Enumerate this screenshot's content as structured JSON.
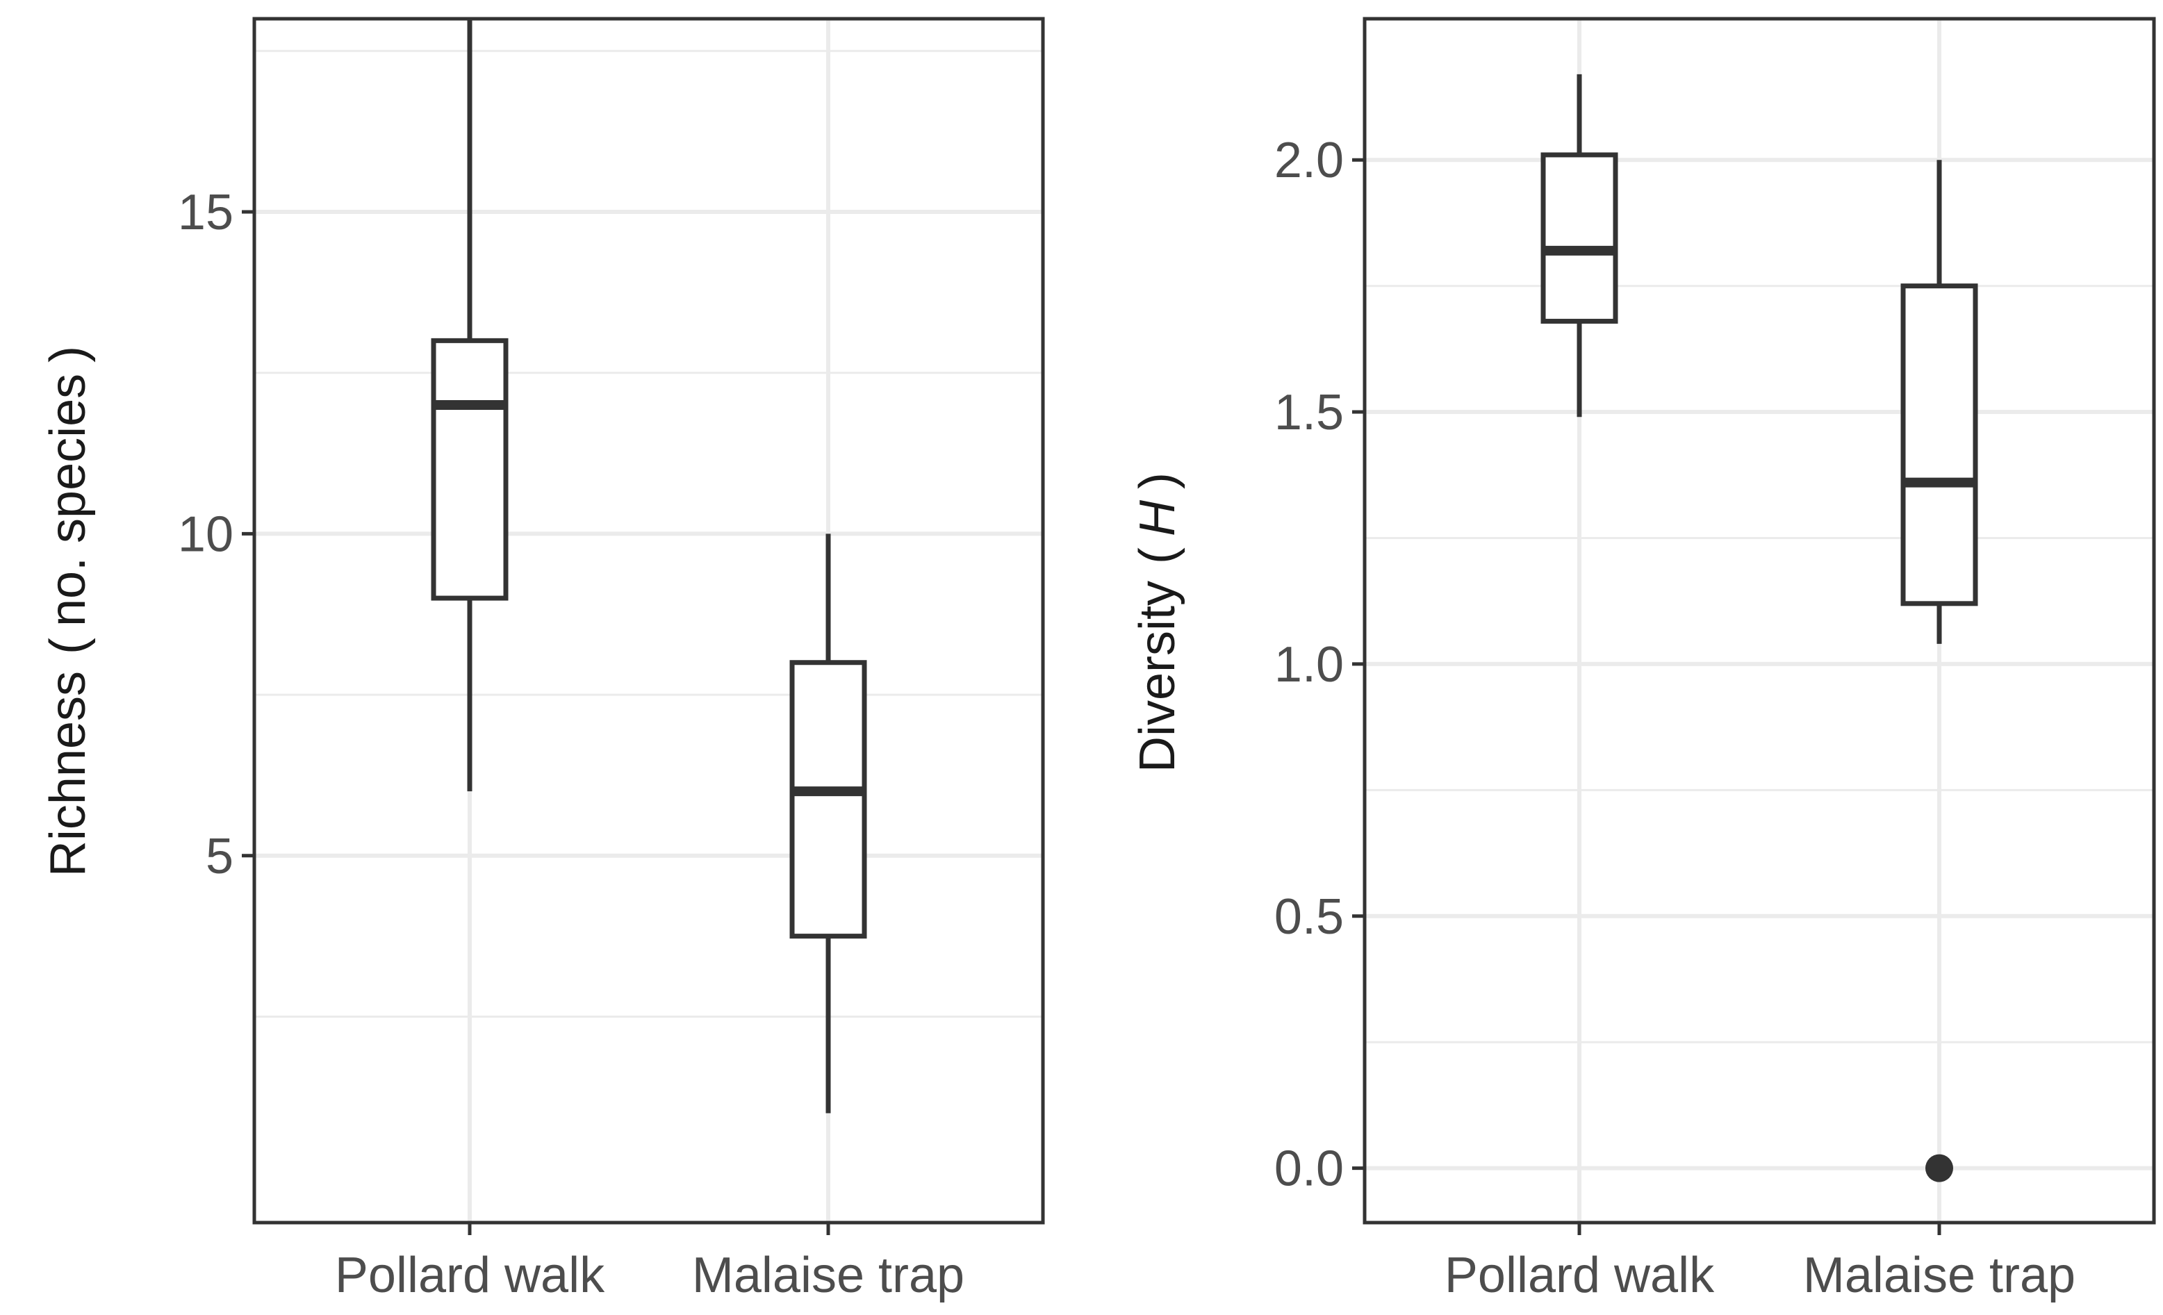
{
  "chart_data": [
    {
      "type": "boxplot",
      "title": "",
      "xlabel": "",
      "ylabel": "Richness (no. species)",
      "ylabel_parts": {
        "main": "Richness",
        "paren_open": "(",
        "unit": "no. species",
        "paren_close": ")"
      },
      "ylim": [
        -0.7,
        18.0
      ],
      "yticks": [
        5,
        10,
        15
      ],
      "ytick_labels": [
        "5",
        "10",
        "15"
      ],
      "yminor": [
        2.5,
        7.5,
        12.5,
        17.5
      ],
      "categories": [
        "Pollard walk",
        "Malaise trap"
      ],
      "boxes": [
        {
          "name": "Pollard walk",
          "whisker_low": 6,
          "q1": 9,
          "median": 12,
          "q3": 13,
          "whisker_high": 18,
          "outliers": []
        },
        {
          "name": "Malaise trap",
          "whisker_low": 1,
          "q1": 3.75,
          "median": 6,
          "q3": 8,
          "whisker_high": 10,
          "outliers": []
        }
      ],
      "grid": true
    },
    {
      "type": "boxplot",
      "title": "",
      "xlabel": "",
      "ylabel": "Diversity (H)",
      "ylabel_parts": {
        "main": "Diversity",
        "paren_open": "(",
        "unit": "H",
        "paren_close": ")"
      },
      "ylim": [
        -0.108,
        2.28
      ],
      "yticks": [
        0.0,
        0.5,
        1.0,
        1.5,
        2.0
      ],
      "ytick_labels": [
        "0.0",
        "0.5",
        "1.0",
        "1.5",
        "2.0"
      ],
      "yminor": [
        0.25,
        0.75,
        1.25,
        1.75
      ],
      "categories": [
        "Pollard walk",
        "Malaise trap"
      ],
      "boxes": [
        {
          "name": "Pollard walk",
          "whisker_low": 1.49,
          "q1": 1.68,
          "median": 1.82,
          "q3": 2.01,
          "whisker_high": 2.17,
          "outliers": []
        },
        {
          "name": "Malaise trap",
          "whisker_low": 1.04,
          "q1": 1.12,
          "median": 1.36,
          "q3": 1.75,
          "whisker_high": 2.0,
          "outliers": [
            0.0
          ]
        }
      ],
      "grid": true
    }
  ]
}
